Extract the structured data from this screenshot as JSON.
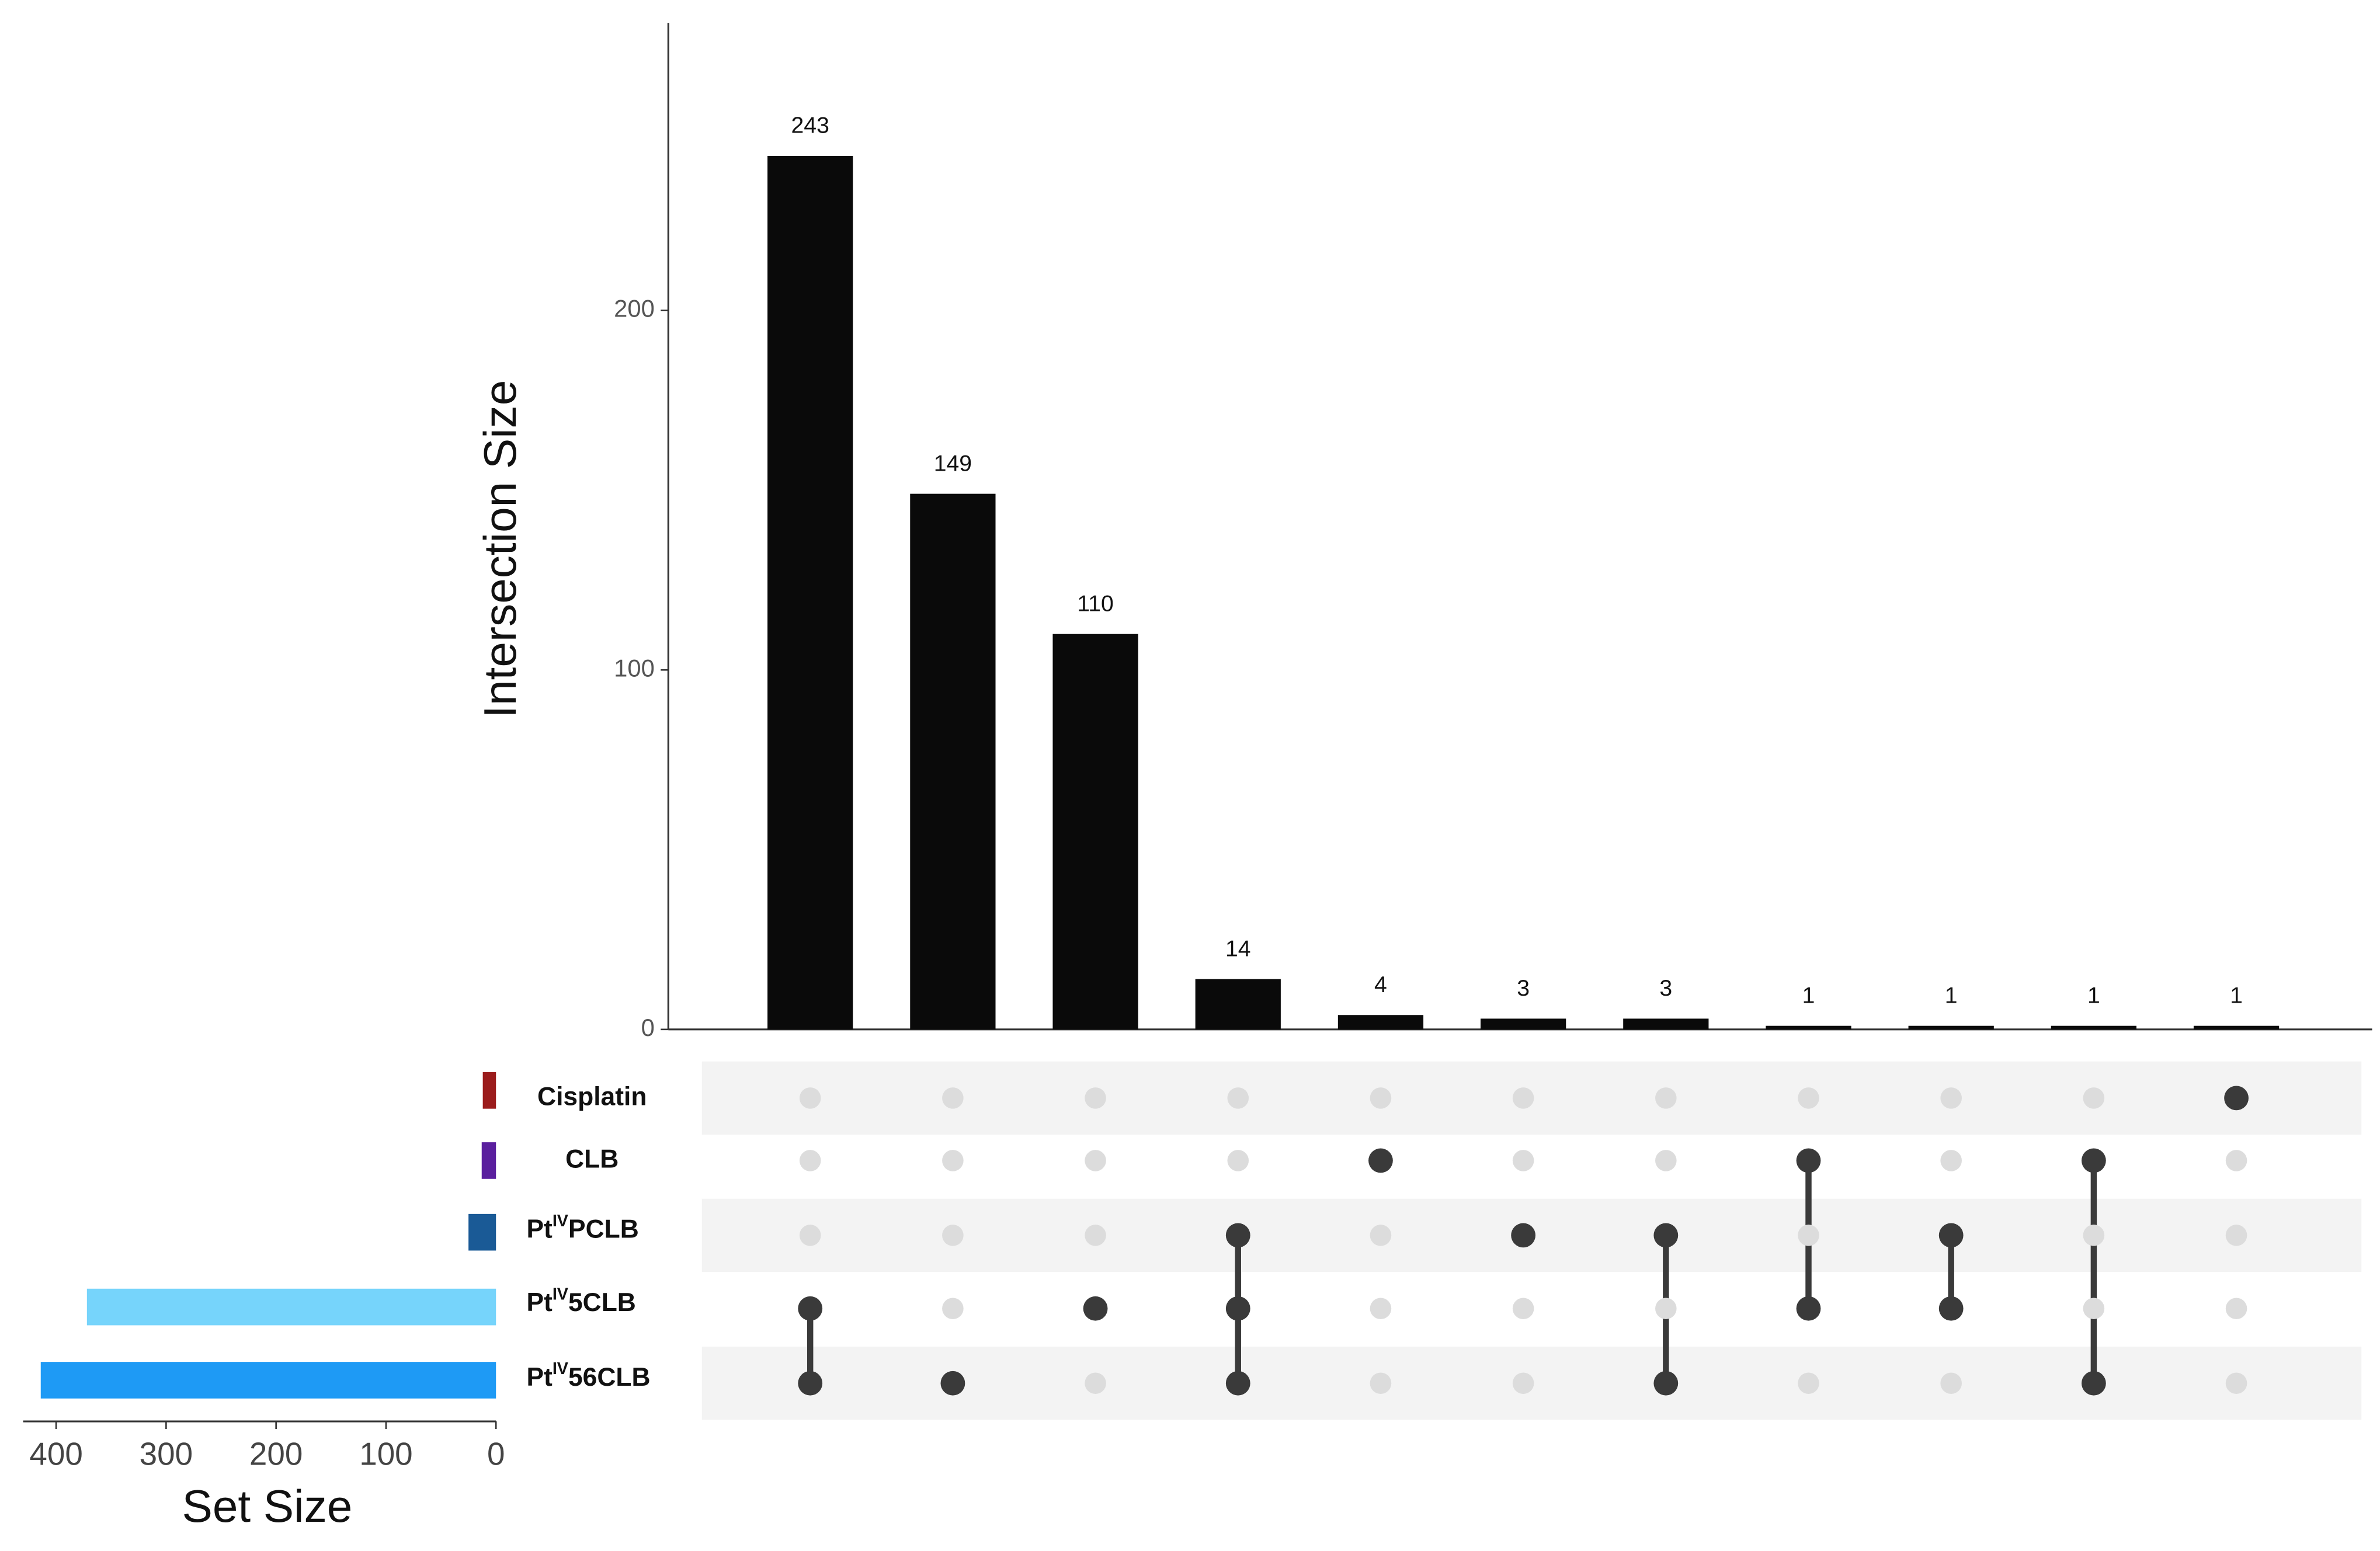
{
  "chart_data": {
    "type": "upset",
    "y_label": "Intersection Size",
    "ylim": [
      0,
      280
    ],
    "yticks": [
      0,
      100,
      200
    ],
    "values": [
      243,
      149,
      110,
      14,
      4,
      3,
      3,
      1,
      1,
      1,
      1
    ],
    "bar_color": "#0a0a0a",
    "sets": [
      {
        "name": [
          "Cisplatin"
        ],
        "color": "#9b1c1c"
      },
      {
        "name": [
          "CLB"
        ],
        "color": "#5a1f9e"
      },
      {
        "name": [
          "Pt",
          "IV",
          "PCLB"
        ],
        "color": "#1a5a96"
      },
      {
        "name": [
          "Pt",
          "IV",
          "5CLB"
        ],
        "color": "#76d4fb"
      },
      {
        "name": [
          "Pt",
          "IV",
          "56CLB"
        ],
        "color": "#1e9af5"
      }
    ],
    "set_sizes": [
      12,
      13,
      25,
      372,
      414
    ],
    "set_size_label": "Set Size",
    "set_size_xlim": [
      0,
      430
    ],
    "set_size_xticks": [
      0,
      100,
      200,
      300,
      400
    ],
    "matrix": [
      [
        0,
        0,
        0,
        1,
        1
      ],
      [
        0,
        0,
        0,
        0,
        1
      ],
      [
        0,
        0,
        0,
        1,
        0
      ],
      [
        0,
        0,
        1,
        1,
        1
      ],
      [
        0,
        1,
        0,
        0,
        0
      ],
      [
        0,
        0,
        1,
        0,
        0
      ],
      [
        0,
        0,
        1,
        0,
        1
      ],
      [
        0,
        1,
        0,
        1,
        0
      ],
      [
        0,
        0,
        1,
        1,
        0
      ],
      [
        0,
        1,
        0,
        0,
        1
      ],
      [
        1,
        0,
        0,
        0,
        0
      ]
    ]
  }
}
